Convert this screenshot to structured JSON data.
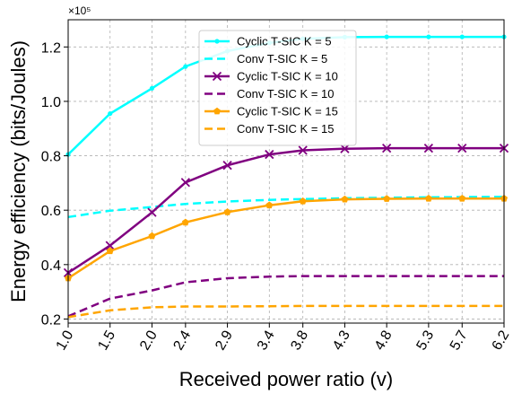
{
  "chart_data": {
    "type": "line",
    "xlabel": "Received power ratio (v)",
    "ylabel": "Energy efficiency (bits/Joules)",
    "y_scale_label": "×10⁵",
    "x_tick_labels": [
      "1.0",
      "1.5",
      "2.0",
      "2.4",
      "2.9",
      "3.4",
      "3.8",
      "4.3",
      "4.8",
      "5.3",
      "5.7",
      "6.2"
    ],
    "x_tick_values": [
      1.0,
      1.5,
      2.0,
      2.4,
      2.9,
      3.4,
      3.8,
      4.3,
      4.8,
      5.3,
      5.7,
      6.2
    ],
    "y_ticks": [
      0.2,
      0.4,
      0.6,
      0.8,
      1.0,
      1.2
    ],
    "y_tick_labels": [
      "0.2",
      "0.4",
      "0.6",
      "0.8",
      "1.0",
      "1.2"
    ],
    "xlim": [
      1.0,
      6.2
    ],
    "ylim": [
      0.185,
      1.3
    ],
    "grid": true,
    "legend_position": "top-center",
    "x": [
      1.0,
      1.5,
      2.0,
      2.4,
      2.9,
      3.4,
      3.8,
      4.3,
      4.8,
      5.3,
      5.7,
      6.2
    ],
    "series": [
      {
        "name": "Cyclic T-SIC K = 5",
        "color": "#00ffff",
        "dash": "solid",
        "marker": "dot",
        "values": [
          0.805,
          0.955,
          1.048,
          1.128,
          1.185,
          1.215,
          1.23,
          1.236,
          1.237,
          1.237,
          1.237,
          1.237
        ]
      },
      {
        "name": "Conv T-SIC K = 5",
        "color": "#00ffff",
        "dash": "dashed",
        "marker": "none",
        "values": [
          0.575,
          0.598,
          0.612,
          0.623,
          0.632,
          0.638,
          0.641,
          0.644,
          0.646,
          0.647,
          0.648,
          0.649
        ]
      },
      {
        "name": "Cyclic T-SIC K = 10",
        "color": "#800080",
        "dash": "solid",
        "marker": "x",
        "values": [
          0.37,
          0.47,
          0.592,
          0.702,
          0.765,
          0.805,
          0.82,
          0.826,
          0.828,
          0.828,
          0.828,
          0.828
        ]
      },
      {
        "name": "Conv T-SIC K = 10",
        "color": "#800080",
        "dash": "dashed",
        "marker": "none",
        "values": [
          0.21,
          0.275,
          0.305,
          0.335,
          0.35,
          0.356,
          0.358,
          0.358,
          0.358,
          0.358,
          0.358,
          0.358
        ]
      },
      {
        "name": "Cyclic T-SIC K = 15",
        "color": "#ffa500",
        "dash": "solid",
        "marker": "pentagon",
        "values": [
          0.35,
          0.45,
          0.505,
          0.555,
          0.593,
          0.618,
          0.633,
          0.64,
          0.642,
          0.643,
          0.643,
          0.643
        ]
      },
      {
        "name": "Conv T-SIC K = 15",
        "color": "#ffa500",
        "dash": "dashed",
        "marker": "none",
        "values": [
          0.207,
          0.232,
          0.243,
          0.246,
          0.246,
          0.247,
          0.248,
          0.248,
          0.248,
          0.248,
          0.248,
          0.248
        ]
      }
    ]
  }
}
